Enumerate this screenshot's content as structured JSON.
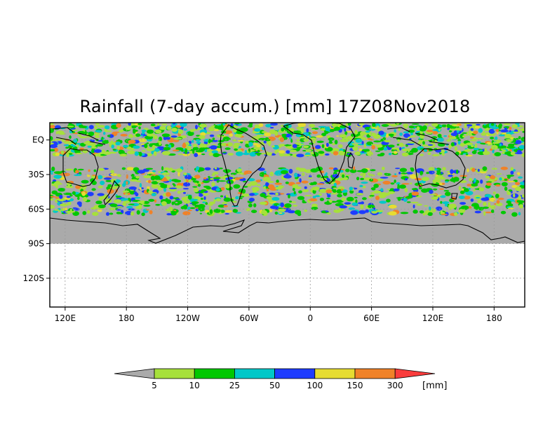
{
  "title": "Rainfall (7-day accum.) [mm] 17Z08Nov2018",
  "map": {
    "lat_labels": [
      "EQ",
      "30S",
      "60S",
      "90S",
      "120S"
    ],
    "lon_labels": [
      "120E",
      "180",
      "120W",
      "60W",
      "0",
      "60E",
      "120E",
      "180"
    ],
    "lat_values": [
      0,
      -30,
      -60,
      -90,
      -120
    ],
    "lon_values": [
      120,
      180,
      240,
      300,
      360,
      420,
      480,
      540
    ],
    "lon_range": [
      105,
      570
    ],
    "lat_range": [
      15,
      -145
    ],
    "data_lat_range": [
      15,
      -90
    ],
    "colors": {
      "no_data": "#aaaaaa",
      "coast": "#000000",
      "grid": "#9a9a9a"
    }
  },
  "legend": {
    "ticks": [
      "5",
      "10",
      "25",
      "50",
      "100",
      "150",
      "300"
    ],
    "unit": "[mm]",
    "colors": [
      "#aaaaaa",
      "#a6e03c",
      "#00c800",
      "#00c8c8",
      "#1e3cff",
      "#e6dc32",
      "#f08228",
      "#fa3c3c"
    ]
  }
}
